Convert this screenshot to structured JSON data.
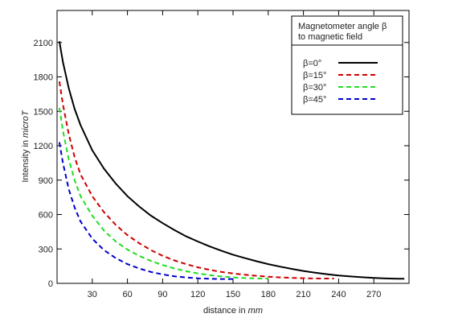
{
  "chart_data": {
    "type": "line",
    "title": "",
    "xlabel": "distance in",
    "xlabel_unit": "mm",
    "ylabel": "Intensity in",
    "ylabel_unit": "microT",
    "xlim": [
      0,
      300
    ],
    "ylim": [
      0,
      2400
    ],
    "xticks": [
      "30",
      "60",
      "90",
      "120",
      "150",
      "180",
      "210",
      "240",
      "270"
    ],
    "yticks": [
      "0",
      "300",
      "600",
      "900",
      "1200",
      "1500",
      "1800",
      "2100"
    ],
    "grid": false,
    "legend": {
      "position": "top-right",
      "title_line1": "Magnetometer angle β",
      "title_line2": "to magnetic field"
    },
    "series": [
      {
        "name": "β=0°",
        "color": "#000000",
        "dash": "solid",
        "x": [
          2,
          5,
          10,
          15,
          20,
          30,
          40,
          50,
          60,
          70,
          80,
          90,
          100,
          110,
          120,
          130,
          140,
          150,
          160,
          170,
          180,
          190,
          200,
          210,
          220,
          230,
          240,
          250,
          260,
          270,
          280,
          290,
          296
        ],
        "y": [
          2110,
          1930,
          1700,
          1520,
          1380,
          1160,
          1000,
          870,
          760,
          670,
          590,
          525,
          465,
          410,
          365,
          322,
          285,
          250,
          220,
          193,
          168,
          146,
          126,
          108,
          93,
          80,
          69,
          60,
          53,
          47,
          43,
          40,
          40
        ]
      },
      {
        "name": "β=15°",
        "color": "#cc0000",
        "dash": "dashed",
        "x": [
          2,
          5,
          10,
          15,
          20,
          30,
          40,
          50,
          60,
          70,
          80,
          90,
          100,
          110,
          120,
          130,
          140,
          150,
          160,
          170,
          180,
          190,
          200,
          210,
          220,
          230,
          236
        ],
        "y": [
          1760,
          1560,
          1300,
          1100,
          950,
          760,
          620,
          510,
          420,
          350,
          290,
          240,
          200,
          168,
          140,
          118,
          100,
          86,
          75,
          66,
          58,
          52,
          48,
          45,
          43,
          42,
          42
        ]
      },
      {
        "name": "β=30°",
        "color": "#22dd22",
        "dash": "dashed",
        "x": [
          2,
          5,
          10,
          15,
          20,
          30,
          40,
          50,
          60,
          70,
          80,
          90,
          100,
          110,
          120,
          130,
          140,
          150,
          160,
          170,
          180
        ],
        "y": [
          1530,
          1330,
          1080,
          900,
          760,
          590,
          460,
          365,
          295,
          240,
          195,
          160,
          130,
          106,
          87,
          72,
          60,
          52,
          46,
          43,
          42
        ]
      },
      {
        "name": "β=45°",
        "color": "#0000cc",
        "dash": "dashed",
        "x": [
          2,
          5,
          10,
          15,
          20,
          30,
          40,
          50,
          60,
          70,
          80,
          90,
          100,
          110,
          120,
          130,
          140,
          150
        ],
        "y": [
          1230,
          1050,
          820,
          660,
          540,
          390,
          290,
          220,
          168,
          130,
          100,
          78,
          62,
          51,
          44,
          40,
          38,
          38
        ]
      }
    ]
  }
}
